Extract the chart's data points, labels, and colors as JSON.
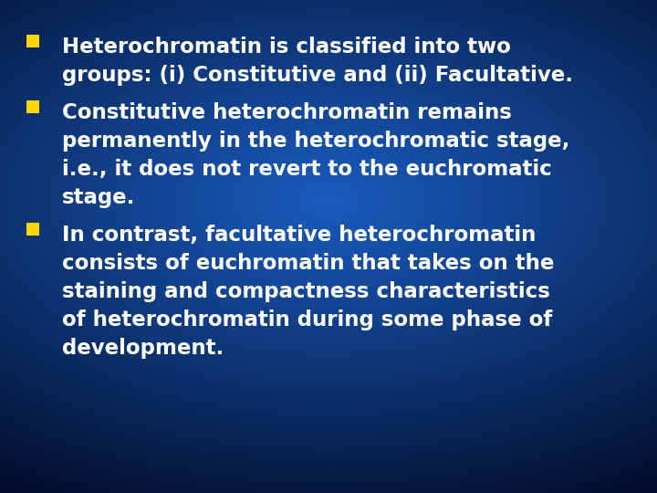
{
  "background_color_center": "#1a5cbf",
  "background_color_edge": "#000820",
  "bullet_color": "#FFD700",
  "text_color": "#FFFFFF",
  "font_size": 16.5,
  "font_family": "Arial",
  "bullets": [
    {
      "lines": [
        "Heterochromatin is classified into two",
        "groups: (i) Constitutive and (ii) Facultative."
      ]
    },
    {
      "lines": [
        "Constitutive heterochromatin remains",
        "permanently in the heterochromatic stage,",
        "i.e., it does not revert to the euchromatic",
        "stage."
      ]
    },
    {
      "lines": [
        "In contrast, facultative heterochromatin",
        "consists of euchromatin that takes on the",
        "staining and compactness characteristics",
        "of heterochromatin during some phase of",
        "development."
      ]
    }
  ]
}
